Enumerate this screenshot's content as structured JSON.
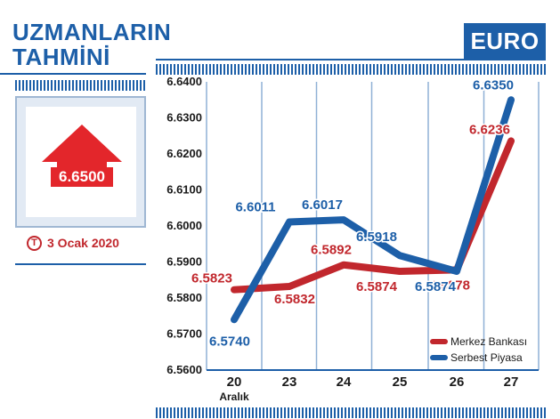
{
  "sidebar": {
    "title_line1": "UZMANLARIN",
    "title_line2": "TAHMİNİ",
    "forecast_value": "6.6500",
    "forecast_direction": "up",
    "date": "3 Ocak 2020",
    "logo_letter": "T"
  },
  "header": {
    "tab_label": "EURO"
  },
  "colors": {
    "merkez": "#c1272d",
    "serbest": "#1d5fa8",
    "accent": "#e3262b"
  },
  "chart_data": {
    "type": "line",
    "categories": [
      "20",
      "23",
      "24",
      "25",
      "26",
      "27"
    ],
    "category_sublabels": [
      "Aralık",
      "",
      "",
      "",
      "",
      ""
    ],
    "yticks": [
      "6.6400",
      "6.6300",
      "6.6200",
      "6.6100",
      "6.6000",
      "6.5900",
      "6.5800",
      "6.5700",
      "6.5600"
    ],
    "ylim": [
      6.56,
      6.64
    ],
    "grid": "vertical",
    "legend_position": "bottom-right",
    "series": [
      {
        "name": "Merkez Bankası",
        "color": "#c1272d",
        "values": [
          6.5823,
          6.5832,
          6.5892,
          6.5874,
          6.5878,
          6.6236
        ],
        "labels": [
          "6.5823",
          "6.5832",
          "6.5892",
          "6.5874",
          "6.5878",
          "6.6236"
        ]
      },
      {
        "name": "Serbest Piyasa",
        "color": "#1d5fa8",
        "values": [
          6.574,
          6.6011,
          6.6017,
          6.5918,
          6.5874,
          6.635
        ],
        "labels": [
          "6.5740",
          "6.6011",
          "6.6017",
          "6.5918",
          "6.5874",
          "6.6350"
        ]
      }
    ]
  }
}
